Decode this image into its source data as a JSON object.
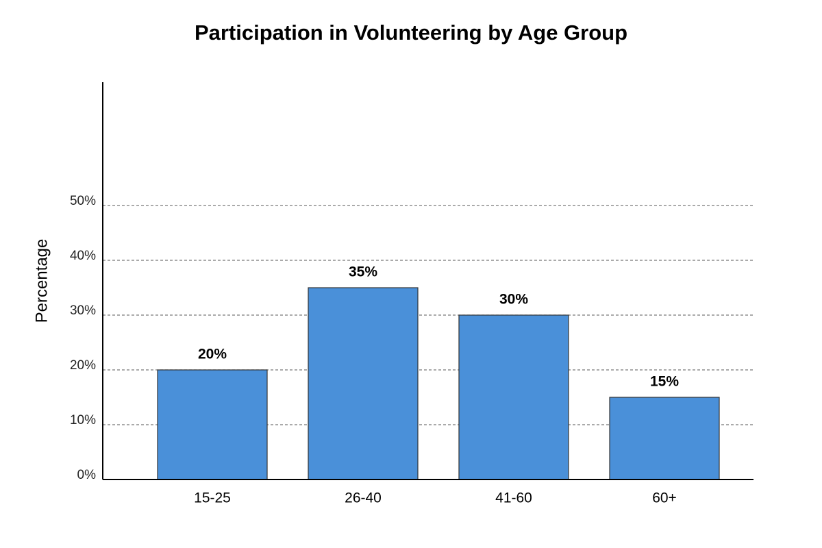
{
  "chart_data": {
    "type": "bar",
    "title": "Participation in Volunteering by Age Group",
    "ylabel": "Percentage",
    "categories": [
      "15-25",
      "26-40",
      "41-60",
      "60+"
    ],
    "values": [
      20,
      35,
      30,
      15
    ],
    "value_labels": [
      "20%",
      "35%",
      "30%",
      "15%"
    ],
    "color": "#4a90d9",
    "ylim": [
      0,
      72.5
    ],
    "yticks": [
      {
        "value": 0,
        "label": "0%"
      },
      {
        "value": 10,
        "label": "10%"
      },
      {
        "value": 20,
        "label": "20%"
      },
      {
        "value": 30,
        "label": "30%"
      },
      {
        "value": 40,
        "label": "40%"
      },
      {
        "value": 50,
        "label": "50%"
      }
    ],
    "grid": true
  }
}
